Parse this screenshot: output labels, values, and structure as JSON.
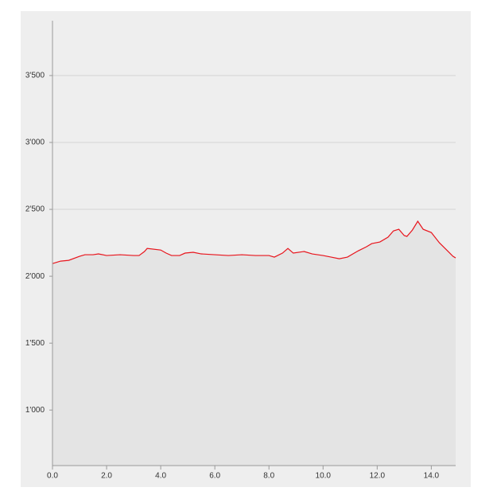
{
  "chart_data": {
    "type": "area",
    "x": [
      0,
      0.3,
      0.6,
      1.0,
      1.2,
      1.5,
      1.7,
      2.0,
      2.5,
      3.0,
      3.2,
      3.4,
      3.5,
      4.0,
      4.2,
      4.4,
      4.7,
      4.9,
      5.2,
      5.5,
      6.0,
      6.5,
      7.0,
      7.5,
      8.0,
      8.2,
      8.5,
      8.7,
      8.9,
      9.3,
      9.6,
      10.0,
      10.3,
      10.6,
      10.9,
      11.3,
      11.6,
      11.8,
      12.1,
      12.4,
      12.6,
      12.8,
      13.0,
      13.1,
      13.3,
      13.5,
      13.7,
      14.0,
      14.3,
      14.6,
      14.8,
      14.9
    ],
    "values": [
      2095,
      2113,
      2119,
      2149,
      2161,
      2161,
      2167,
      2155,
      2161,
      2155,
      2155,
      2185,
      2208,
      2196,
      2173,
      2155,
      2155,
      2173,
      2179,
      2167,
      2161,
      2155,
      2161,
      2155,
      2155,
      2143,
      2173,
      2208,
      2173,
      2185,
      2167,
      2155,
      2143,
      2131,
      2143,
      2190,
      2220,
      2244,
      2256,
      2292,
      2339,
      2351,
      2304,
      2298,
      2345,
      2411,
      2351,
      2327,
      2250,
      2190,
      2149,
      2137
    ],
    "color": "#e8141c",
    "fill": "#e4e4e4",
    "xlim": [
      0,
      14.9
    ],
    "ylim": [
      585,
      3910
    ],
    "xticks": [
      {
        "value": 0,
        "label": "0.0"
      },
      {
        "value": 2,
        "label": "2.0"
      },
      {
        "value": 4,
        "label": "4.0"
      },
      {
        "value": 6,
        "label": "6.0"
      },
      {
        "value": 8,
        "label": "8.0"
      },
      {
        "value": 10,
        "label": "10.0"
      },
      {
        "value": 12,
        "label": "12.0"
      },
      {
        "value": 14,
        "label": "14.0"
      }
    ],
    "yticks": [
      {
        "value": 1000,
        "label": "1'000"
      },
      {
        "value": 1500,
        "label": "1'500"
      },
      {
        "value": 2000,
        "label": "2'000"
      },
      {
        "value": 2500,
        "label": "2'500"
      },
      {
        "value": 3000,
        "label": "3'000"
      },
      {
        "value": 3500,
        "label": "3'500"
      }
    ],
    "grid": true
  }
}
